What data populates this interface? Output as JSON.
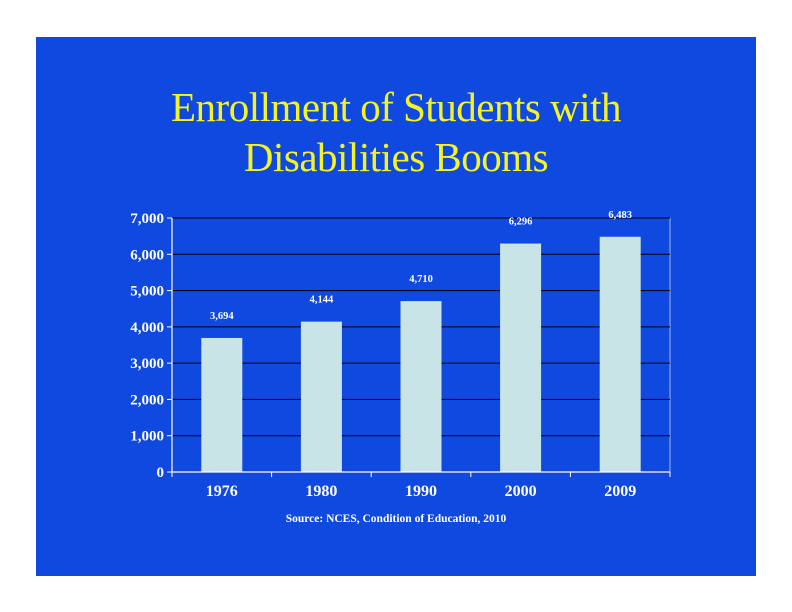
{
  "slide": {
    "title_line1": "Enrollment of Students with",
    "title_line2": "Disabilities Booms",
    "source": "Source: NCES, Condition of Education, 2010"
  },
  "colors": {
    "background": "#0f49e0",
    "title": "#f4f326",
    "bar": "#c9e4e6",
    "text": "#ffffff",
    "gridline": "#000000"
  },
  "chart_data": {
    "type": "bar",
    "title": "Enrollment of Students with Disabilities Booms",
    "categories": [
      "1976",
      "1980",
      "1990",
      "2000",
      "2009"
    ],
    "values": [
      3694,
      4144,
      4710,
      6296,
      6483
    ],
    "value_labels": [
      "3,694",
      "4,144",
      "4,710",
      "6,296",
      "6,483"
    ],
    "ylim": [
      0,
      7000
    ],
    "yticks": [
      0,
      1000,
      2000,
      3000,
      4000,
      5000,
      6000,
      7000
    ],
    "ytick_labels": [
      "0",
      "1,000",
      "2,000",
      "3,000",
      "4,000",
      "5,000",
      "6,000",
      "7,000"
    ],
    "xlabel": "",
    "ylabel": "",
    "grid": true,
    "legend": "none"
  }
}
